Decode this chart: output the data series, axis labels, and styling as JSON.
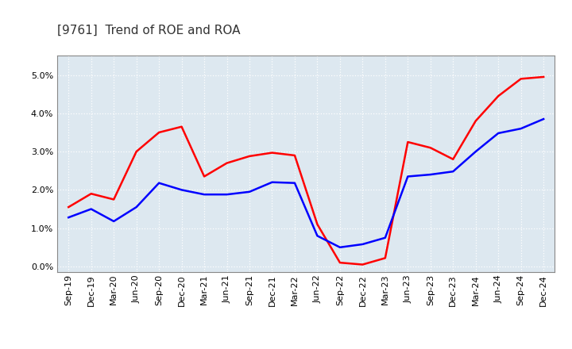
{
  "title": "[9761]  Trend of ROE and ROA",
  "x_labels": [
    "Sep-19",
    "Dec-19",
    "Mar-20",
    "Jun-20",
    "Sep-20",
    "Dec-20",
    "Mar-21",
    "Jun-21",
    "Sep-21",
    "Dec-21",
    "Mar-22",
    "Jun-22",
    "Sep-22",
    "Dec-22",
    "Mar-23",
    "Jun-23",
    "Sep-23",
    "Dec-23",
    "Mar-24",
    "Jun-24",
    "Sep-24",
    "Dec-24"
  ],
  "roe": [
    1.55,
    1.9,
    1.75,
    3.0,
    3.5,
    3.65,
    2.35,
    2.7,
    2.88,
    2.97,
    2.9,
    1.1,
    0.1,
    0.05,
    0.22,
    3.25,
    3.1,
    2.8,
    3.8,
    4.45,
    4.9,
    4.95
  ],
  "roa": [
    1.28,
    1.5,
    1.18,
    1.55,
    2.18,
    2.0,
    1.88,
    1.88,
    1.95,
    2.2,
    2.18,
    0.8,
    0.5,
    0.58,
    0.75,
    2.35,
    2.4,
    2.48,
    3.0,
    3.48,
    3.6,
    3.85
  ],
  "roe_color": "#ff0000",
  "roa_color": "#0000ff",
  "ylim": [
    -0.15,
    5.5
  ],
  "yticks": [
    0.0,
    1.0,
    2.0,
    3.0,
    4.0,
    5.0
  ],
  "background_color": "#ffffff",
  "plot_bg_color": "#dde8f0",
  "grid_color": "#ffffff",
  "title_fontsize": 11,
  "legend_fontsize": 10,
  "tick_fontsize": 8,
  "line_width": 1.8
}
